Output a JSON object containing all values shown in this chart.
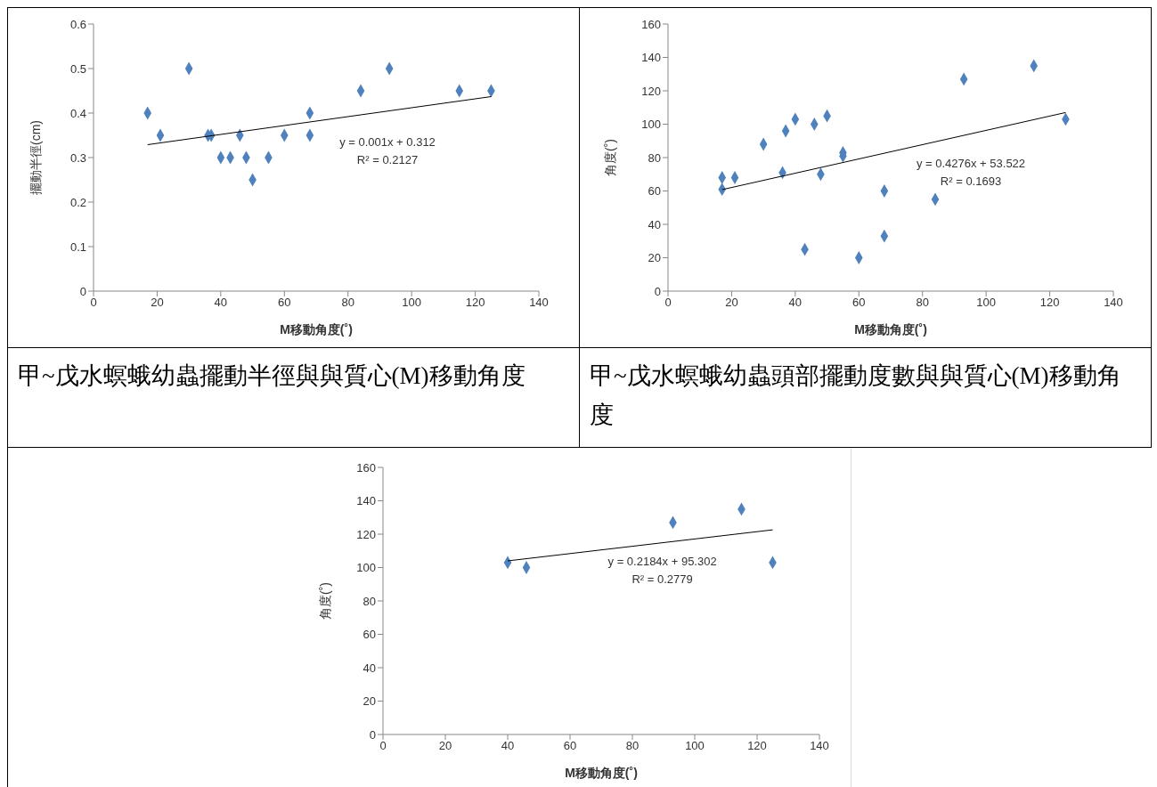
{
  "chart_data": [
    {
      "type": "scatter",
      "title": "甲~戊水螟蛾幼蟲擺動半徑與與質心(M)移動角度",
      "xlabel": "M移動角度(˚)",
      "ylabel": "擺動半徑(cm)",
      "xlim": [
        0,
        140
      ],
      "xticks": [
        0,
        20,
        40,
        60,
        80,
        100,
        120,
        140
      ],
      "ylim": [
        0,
        0.6
      ],
      "yticks": [
        0,
        0.1,
        0.2,
        0.3,
        0.4,
        0.5,
        0.6
      ],
      "annotations": [
        "y = 0.001x + 0.312",
        "R² = 0.2127"
      ],
      "series": [
        {
          "marker": "diamond",
          "color": "#4f81bd",
          "x": [
            17,
            21,
            30,
            36,
            37,
            40,
            43,
            46,
            48,
            50,
            55,
            60,
            68,
            68,
            84,
            93,
            115,
            125
          ],
          "values": [
            0.4,
            0.35,
            0.5,
            0.35,
            0.35,
            0.3,
            0.3,
            0.35,
            0.3,
            0.25,
            0.3,
            0.35,
            0.4,
            0.35,
            0.45,
            0.5,
            0.45,
            0.45
          ]
        },
        {
          "type": "line",
          "marker": "none",
          "color": "#000000",
          "x": [
            17,
            125
          ],
          "values": [
            0.329,
            0.437
          ]
        }
      ]
    },
    {
      "type": "scatter",
      "title": "甲~戊水螟蛾幼蟲頭部擺動度數與與質心(M)移動角度",
      "xlabel": "M移動角度(˚)",
      "ylabel": "角度(˚)",
      "xlim": [
        0,
        140
      ],
      "xticks": [
        0,
        20,
        40,
        60,
        80,
        100,
        120,
        140
      ],
      "ylim": [
        0,
        160
      ],
      "yticks": [
        0,
        20,
        40,
        60,
        80,
        100,
        120,
        140,
        160
      ],
      "annotations": [
        "y = 0.4276x + 53.522",
        "R² = 0.1693"
      ],
      "series": [
        {
          "marker": "diamond",
          "color": "#4f81bd",
          "x": [
            17,
            17,
            21,
            30,
            36,
            37,
            40,
            43,
            46,
            48,
            50,
            55,
            55,
            60,
            68,
            68,
            84,
            93,
            115,
            125
          ],
          "values": [
            68,
            61,
            68,
            88,
            71,
            96,
            103,
            25,
            100,
            70,
            105,
            83,
            81,
            20,
            60,
            33,
            55,
            127,
            135,
            103
          ]
        },
        {
          "type": "line",
          "marker": "none",
          "color": "#000000",
          "x": [
            17,
            125
          ],
          "values": [
            60.8,
            107
          ]
        }
      ]
    },
    {
      "type": "scatter",
      "xlabel": "M移動角度(˚)",
      "ylabel": "角度(˚)",
      "xlim": [
        0,
        140
      ],
      "xticks": [
        0,
        20,
        40,
        60,
        80,
        100,
        120,
        140
      ],
      "ylim": [
        0,
        160
      ],
      "yticks": [
        0,
        20,
        40,
        60,
        80,
        100,
        120,
        140,
        160
      ],
      "annotations": [
        "y = 0.2184x + 95.302",
        "R² = 0.2779"
      ],
      "series": [
        {
          "marker": "diamond",
          "color": "#4f81bd",
          "x": [
            40,
            46,
            93,
            115,
            125
          ],
          "values": [
            103,
            100,
            127,
            135,
            103
          ]
        },
        {
          "type": "line",
          "marker": "none",
          "color": "#000000",
          "x": [
            40,
            125
          ],
          "values": [
            104,
            122.6
          ]
        }
      ]
    }
  ]
}
